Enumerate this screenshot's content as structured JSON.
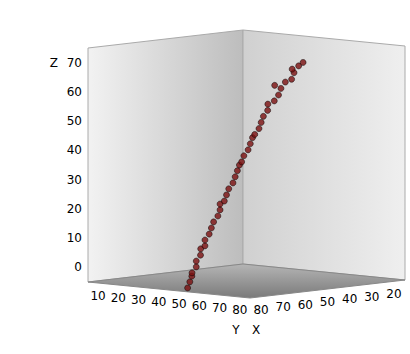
{
  "chart_data": {
    "type": "scatter3d",
    "x": [
      83,
      82,
      82,
      81,
      80,
      80,
      79,
      78,
      77,
      77,
      76,
      75,
      74,
      73,
      72,
      72,
      71,
      70,
      69,
      68,
      67,
      66,
      66,
      65,
      64,
      63,
      62,
      61,
      60,
      59,
      58,
      57,
      56,
      55,
      53,
      52,
      50,
      51,
      48,
      47,
      45,
      44,
      42,
      40
    ],
    "y": [
      52,
      52,
      53,
      52,
      53,
      53,
      54,
      53,
      54,
      54,
      55,
      55,
      55,
      56,
      56,
      56,
      57,
      57,
      57,
      58,
      58,
      58,
      59,
      59,
      59,
      60,
      60,
      60,
      60,
      61,
      61,
      61,
      62,
      61,
      62,
      63,
      62,
      60,
      62,
      64,
      63,
      61,
      62,
      62
    ],
    "z": [
      -4,
      -2,
      0,
      1,
      3,
      5,
      7,
      9,
      10,
      12,
      14,
      16,
      18,
      20,
      22,
      24,
      25,
      27,
      29,
      31,
      33,
      35,
      37,
      38,
      40,
      42,
      44,
      46,
      47,
      49,
      51,
      53,
      55,
      57,
      58,
      60,
      62,
      63,
      64,
      65,
      67,
      68,
      69,
      70
    ],
    "xlim": [
      15,
      85
    ],
    "ylim": [
      5,
      85
    ],
    "zlim": [
      -5,
      75
    ],
    "xticks": [
      20,
      30,
      40,
      50,
      60,
      70,
      80
    ],
    "yticks": [
      10,
      20,
      30,
      40,
      50,
      60,
      70,
      80
    ],
    "zticks": [
      0,
      10,
      20,
      30,
      40,
      50,
      60,
      70
    ],
    "x_label": "X",
    "y_label": "Y",
    "z_label": "Z",
    "color": "#7b0f0f",
    "marker": "circle",
    "grid": false
  }
}
